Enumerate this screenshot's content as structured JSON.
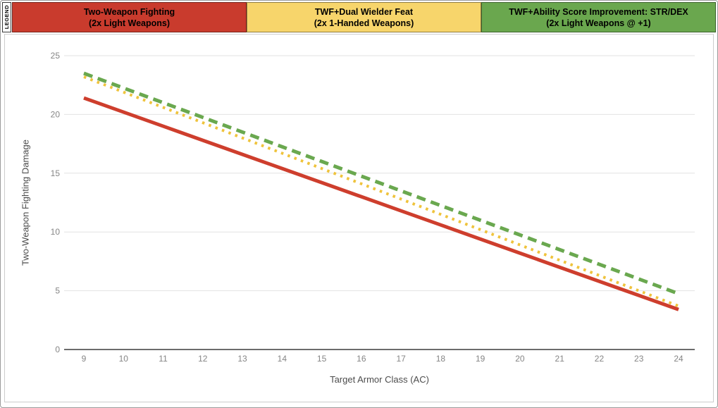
{
  "legend": {
    "tab_label": "LEGEND",
    "items": [
      {
        "line1": "Two-Weapon Fighting",
        "line2": "(2x Light Weapons)",
        "color": "#C93B2D"
      },
      {
        "line1": "TWF+Dual Wielder Feat",
        "line2": "(2x 1-Handed Weapons)",
        "color": "#F7D56B"
      },
      {
        "line1": "TWF+Ability Score Improvement: STR/DEX",
        "line2": "(2x Light Weapons @ +1)",
        "color": "#6AA74E"
      }
    ]
  },
  "chart_data": {
    "type": "line",
    "xlabel": "Target Armor Class (AC)",
    "ylabel": "Two-Weapon Fighting Damage",
    "x": [
      9,
      10,
      11,
      12,
      13,
      14,
      15,
      16,
      17,
      18,
      19,
      20,
      21,
      22,
      23,
      24
    ],
    "xlim": [
      9,
      24
    ],
    "ylim": [
      0,
      25
    ],
    "yticks": [
      0,
      5,
      10,
      15,
      20,
      25
    ],
    "grid": "horizontal",
    "legend_position": "top",
    "axis_colors": {
      "gridline": "#e2e2e2",
      "zero_axis": "#3c3c3c",
      "tick_label": "#858585",
      "axis_title": "#4c4c4c"
    },
    "series": [
      {
        "name": "Two-Weapon Fighting (2x Light Weapons)",
        "color": "#CE3E2D",
        "style": "solid",
        "values": [
          21.4,
          20.2,
          19.0,
          17.8,
          16.6,
          15.4,
          14.2,
          13.0,
          11.8,
          10.6,
          9.4,
          8.2,
          7.0,
          5.8,
          4.6,
          3.4
        ]
      },
      {
        "name": "TWF+Dual Wielder Feat (2x 1-Handed Weapons)",
        "color": "#EFC33C",
        "style": "dotted",
        "values": [
          23.2,
          21.9,
          20.6,
          19.3,
          18.0,
          16.7,
          15.4,
          14.1,
          12.8,
          11.5,
          10.2,
          8.9,
          7.6,
          6.3,
          5.0,
          3.7
        ]
      },
      {
        "name": "TWF+Ability Score Improvement: STR/DEX (2x Light Weapons @ +1)",
        "color": "#6AA84F",
        "style": "dashed",
        "values": [
          23.5,
          22.25,
          21.0,
          19.75,
          18.5,
          17.25,
          16.0,
          14.75,
          13.5,
          12.25,
          11.0,
          9.75,
          8.5,
          7.25,
          6.0,
          4.75
        ]
      }
    ]
  }
}
